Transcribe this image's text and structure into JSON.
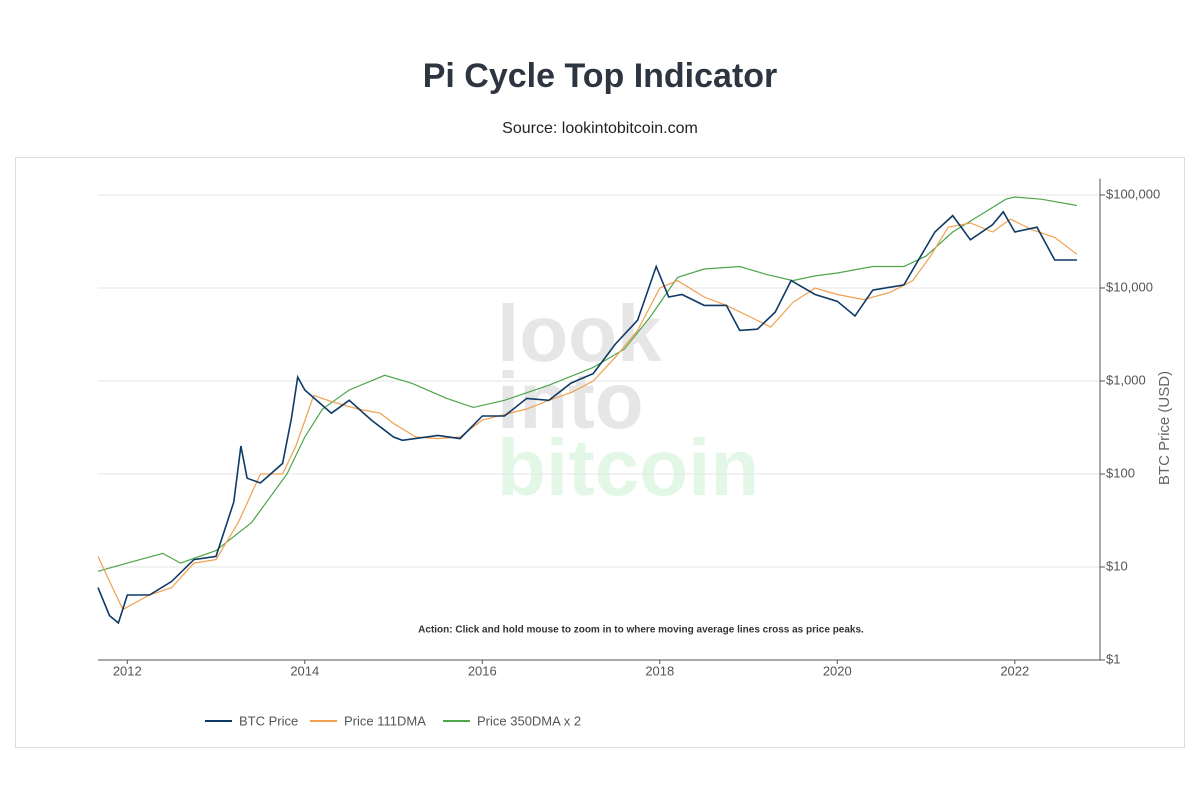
{
  "chart_data": {
    "type": "line",
    "title": "Pi Cycle Top Indicator",
    "subtitle": "Source: lookintobitcoin.com",
    "annotation": "Action: Click and hold mouse to zoom in to where moving average lines cross as price peaks.",
    "watermark": [
      "look",
      "into",
      "bitcoin"
    ],
    "y_label": "BTC Price (USD)",
    "log_y": true,
    "grid": true,
    "legend": "bottom",
    "xlim": [
      2011.67,
      2022.96
    ],
    "xticks": [
      2012,
      2014,
      2016,
      2018,
      2020,
      2022
    ],
    "ylim": [
      1,
      150000
    ],
    "yticks": [
      {
        "value": 1,
        "label": "$1"
      },
      {
        "value": 10,
        "label": "$10"
      },
      {
        "value": 100,
        "label": "$100"
      },
      {
        "value": 1000,
        "label": "$1,000"
      },
      {
        "value": 10000,
        "label": "$10,000"
      },
      {
        "value": 100000,
        "label": "$100,000"
      }
    ],
    "series": [
      {
        "name": "BTC Price",
        "color": "#0f3a66",
        "x": [
          2011.67,
          2011.8,
          2011.9,
          2012.0,
          2012.25,
          2012.5,
          2012.75,
          2013.0,
          2013.2,
          2013.28,
          2013.35,
          2013.5,
          2013.75,
          2013.85,
          2013.92,
          2014.0,
          2014.15,
          2014.3,
          2014.5,
          2014.75,
          2015.0,
          2015.1,
          2015.5,
          2015.75,
          2016.0,
          2016.25,
          2016.5,
          2016.75,
          2017.0,
          2017.25,
          2017.5,
          2017.75,
          2017.96,
          2018.1,
          2018.25,
          2018.5,
          2018.75,
          2018.9,
          2019.1,
          2019.3,
          2019.48,
          2019.75,
          2020.0,
          2020.2,
          2020.4,
          2020.75,
          2020.9,
          2021.1,
          2021.3,
          2021.5,
          2021.75,
          2021.87,
          2022.0,
          2022.25,
          2022.45,
          2022.7
        ],
        "values": [
          6,
          3,
          2.5,
          5,
          5,
          7,
          12,
          13,
          50,
          200,
          90,
          80,
          130,
          400,
          1100,
          800,
          600,
          450,
          620,
          380,
          250,
          230,
          260,
          240,
          420,
          420,
          650,
          620,
          950,
          1200,
          2500,
          4500,
          17000,
          8000,
          8500,
          6500,
          6500,
          3500,
          3600,
          5500,
          12000,
          8500,
          7200,
          5000,
          9500,
          10800,
          19000,
          40000,
          60000,
          33000,
          48000,
          66000,
          40000,
          45000,
          20000,
          20000
        ]
      },
      {
        "name": "Price 111DMA",
        "color": "#f0a050",
        "x": [
          2011.67,
          2011.8,
          2011.95,
          2012.25,
          2012.5,
          2012.75,
          2013.0,
          2013.25,
          2013.5,
          2013.75,
          2013.9,
          2014.1,
          2014.3,
          2014.6,
          2014.85,
          2015.0,
          2015.25,
          2015.5,
          2015.75,
          2016.0,
          2016.5,
          2016.75,
          2017.0,
          2017.25,
          2017.5,
          2017.75,
          2018.0,
          2018.2,
          2018.5,
          2018.75,
          2019.0,
          2019.25,
          2019.5,
          2019.75,
          2020.0,
          2020.3,
          2020.6,
          2020.85,
          2021.05,
          2021.25,
          2021.5,
          2021.75,
          2021.95,
          2022.2,
          2022.45,
          2022.7
        ],
        "values": [
          13,
          7,
          3.5,
          5,
          6,
          11,
          12,
          30,
          100,
          100,
          200,
          700,
          600,
          500,
          450,
          350,
          250,
          240,
          250,
          380,
          500,
          620,
          750,
          1000,
          1800,
          3500,
          10000,
          12000,
          8000,
          6500,
          5000,
          3800,
          7000,
          10000,
          8500,
          7500,
          9000,
          12000,
          22000,
          45000,
          50000,
          40000,
          55000,
          42000,
          35000,
          23000
        ]
      },
      {
        "name": "Price 350DMA x 2",
        "color": "#4ca64c",
        "x": [
          2011.67,
          2012.0,
          2012.4,
          2012.6,
          2013.0,
          2013.4,
          2013.8,
          2014.0,
          2014.2,
          2014.5,
          2014.9,
          2015.2,
          2015.6,
          2015.9,
          2016.25,
          2016.75,
          2017.25,
          2017.6,
          2017.9,
          2018.2,
          2018.5,
          2018.9,
          2019.2,
          2019.5,
          2019.75,
          2020.0,
          2020.4,
          2020.75,
          2021.0,
          2021.3,
          2021.6,
          2021.9,
          2022.0,
          2022.3,
          2022.7
        ],
        "values": [
          9,
          11,
          14,
          11,
          15,
          30,
          100,
          250,
          500,
          800,
          1150,
          950,
          650,
          520,
          620,
          900,
          1400,
          2200,
          5000,
          13000,
          16000,
          17000,
          14000,
          12000,
          13500,
          14500,
          17000,
          17000,
          22000,
          40000,
          60000,
          90000,
          95000,
          90000,
          77000
        ]
      }
    ]
  }
}
